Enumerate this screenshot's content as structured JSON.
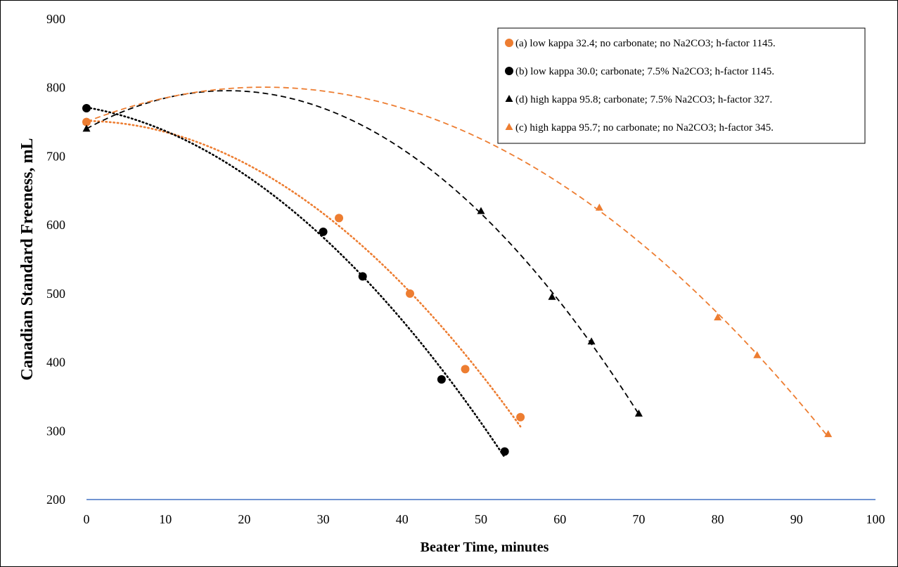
{
  "chart_data": {
    "type": "scatter",
    "xlabel": "Beater Time, minutes",
    "ylabel": "Canadian Standard Freeness, mL",
    "xlim": [
      0,
      100
    ],
    "ylim": [
      200,
      900
    ],
    "xticks": [
      0,
      10,
      20,
      30,
      40,
      50,
      60,
      70,
      80,
      90,
      100
    ],
    "yticks": [
      200,
      300,
      400,
      500,
      600,
      700,
      800,
      900
    ],
    "grid": false,
    "legend_position": "top-right",
    "series": [
      {
        "name": "(a) low kappa 32.4; no carbonate; no Na2CO3; h-factor 1145.",
        "marker": "circle",
        "color": "#ED7D31",
        "trendline": "dotted",
        "x": [
          0,
          32,
          41,
          48,
          55
        ],
        "y": [
          750,
          610,
          500,
          390,
          320
        ],
        "trend_x": [
          0,
          55
        ]
      },
      {
        "name": "(b) low kappa 30.0; carbonate; 7.5% Na2CO3; h-factor 1145.",
        "marker": "circle",
        "color": "#000000",
        "trendline": "dotted",
        "x": [
          0,
          30,
          35,
          45,
          53
        ],
        "y": [
          770,
          590,
          525,
          375,
          270
        ],
        "trend_x": [
          0,
          53
        ]
      },
      {
        "name": "(d) high kappa 95.8; carbonate; 7.5% Na2CO3; h-factor 327.",
        "marker": "triangle",
        "color": "#000000",
        "trendline": "dashed",
        "x": [
          0,
          50,
          59,
          64,
          70
        ],
        "y": [
          740,
          620,
          495,
          430,
          325
        ],
        "trend_x": [
          0,
          70
        ]
      },
      {
        "name": "(c) high kappa 95.7; no carbonate; no Na2CO3; h-factor 345.",
        "marker": "triangle",
        "color": "#ED7D31",
        "trendline": "dashed",
        "x": [
          0,
          65,
          80,
          85,
          94
        ],
        "y": [
          750,
          625,
          465,
          410,
          295
        ],
        "trend_x": [
          0,
          94
        ]
      }
    ],
    "x_axis_color": "#4472C4"
  }
}
